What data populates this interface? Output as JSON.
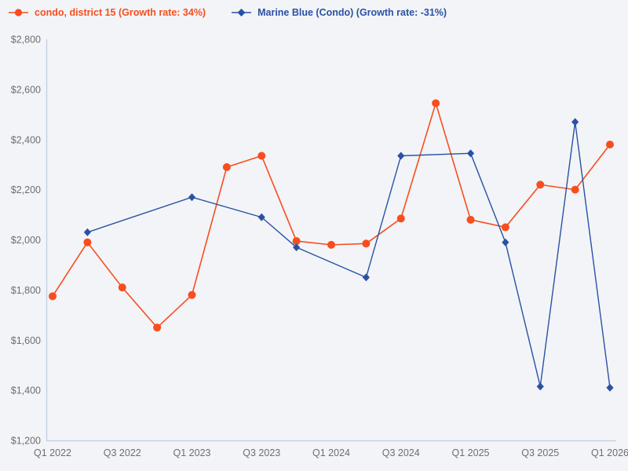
{
  "legend": {
    "items": [
      {
        "label": "condo, district 15 (Growth rate: 34%)",
        "color": "#F84D1E",
        "marker": "circle"
      },
      {
        "label": "Marine Blue (Condo) (Growth rate: -31%)",
        "color": "#2A51A3",
        "marker": "diamond"
      }
    ]
  },
  "chart_data": {
    "type": "line",
    "categories": [
      "Q1 2022",
      "Q2 2022",
      "Q3 2022",
      "Q4 2022",
      "Q1 2023",
      "Q2 2023",
      "Q3 2023",
      "Q4 2023",
      "Q1 2024",
      "Q2 2024",
      "Q3 2024",
      "Q4 2024",
      "Q1 2025",
      "Q2 2025",
      "Q3 2025",
      "Q4 2025",
      "Q1 2026"
    ],
    "x_tick_labels": [
      "Q1 2022",
      "Q3 2022",
      "Q1 2023",
      "Q3 2023",
      "Q1 2024",
      "Q3 2024",
      "Q1 2025",
      "Q3 2025",
      "Q1 2026"
    ],
    "y_tick_labels": [
      "$1,200",
      "$1,400",
      "$1,600",
      "$1,800",
      "$2,000",
      "$2,200",
      "$2,400",
      "$2,600",
      "$2,800"
    ],
    "series": [
      {
        "name": "condo, district 15",
        "growth_rate": "34%",
        "color": "#F84D1E",
        "marker": "circle",
        "values": [
          1775,
          1990,
          1810,
          1650,
          1780,
          2290,
          2335,
          1995,
          1980,
          1985,
          2085,
          2545,
          2080,
          2050,
          2220,
          2200,
          2380
        ]
      },
      {
        "name": "Marine Blue (Condo)",
        "growth_rate": "-31%",
        "color": "#2A51A3",
        "marker": "diamond",
        "values": [
          null,
          2030,
          null,
          null,
          2170,
          null,
          2090,
          1970,
          null,
          1850,
          2335,
          null,
          2345,
          1990,
          1415,
          2470,
          1410
        ]
      }
    ],
    "y_axis": {
      "min": 1200,
      "max": 2800,
      "step": 200,
      "prefix": "$"
    },
    "grid": false,
    "legend_position": "top-left",
    "title": "",
    "xlabel": "",
    "ylabel": ""
  },
  "colors": {
    "background": "#F2F4F7",
    "axis_line": "#C5D2E8",
    "tick_text": "#6B6E73"
  }
}
